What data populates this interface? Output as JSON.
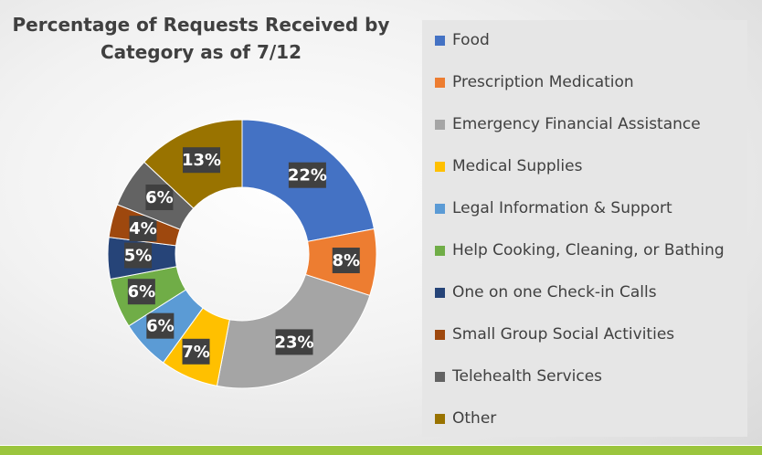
{
  "chart_data": {
    "type": "pie",
    "variant": "donut",
    "title_lines": [
      "Percentage of Requests Received by",
      "Category as of 7/12"
    ],
    "categories": [
      "Food",
      "Prescription Medication",
      "Emergency Financial Assistance",
      "Medical Supplies",
      "Legal Information & Support",
      "Help Cooking, Cleaning, or Bathing",
      "One on one Check-in Calls",
      "Small Group Social Activities",
      "Telehealth Services",
      "Other"
    ],
    "values": [
      22,
      8,
      23,
      7,
      6,
      6,
      5,
      4,
      6,
      13
    ],
    "data_labels": [
      "22%",
      "8%",
      "23%",
      "7%",
      "6%",
      "6%",
      "5%",
      "4%",
      "6%",
      "13%"
    ],
    "colors": [
      "#4472c4",
      "#ed7d31",
      "#a5a5a5",
      "#ffc000",
      "#5b9bd5",
      "#70ad47",
      "#264478",
      "#9e480e",
      "#636363",
      "#997300"
    ],
    "legend_position": "right"
  }
}
